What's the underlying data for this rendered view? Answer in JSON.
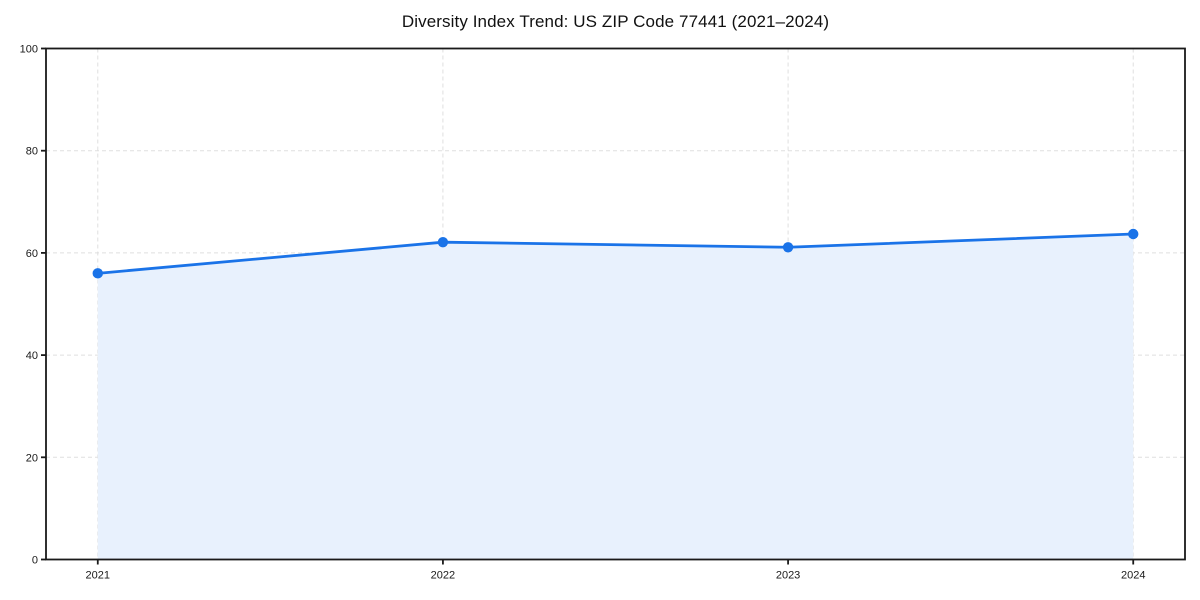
{
  "chart_data": {
    "type": "area",
    "title": "Diversity Index Trend: US ZIP Code 77441 (2021–2024)",
    "x": [
      2021,
      2022,
      2023,
      2024
    ],
    "values": [
      56.0,
      62.1,
      61.1,
      63.7
    ],
    "xticks": [
      "2021",
      "2022",
      "2023",
      "2024"
    ],
    "yticks": [
      0,
      20,
      40,
      60,
      80,
      100
    ],
    "xlabel": "",
    "ylabel": "",
    "ylim": [
      0,
      100
    ],
    "grid": true,
    "grid_style": "dashed",
    "legend": "none",
    "colors": {
      "line": "#1a73e8",
      "marker": "#1a73e8",
      "fill": "#e8f1fd",
      "grid": "#dcdcdc",
      "spine": "#1a1a1a",
      "tick_label": "#1a1a1a",
      "title": "#111111",
      "background": "#ffffff"
    }
  }
}
